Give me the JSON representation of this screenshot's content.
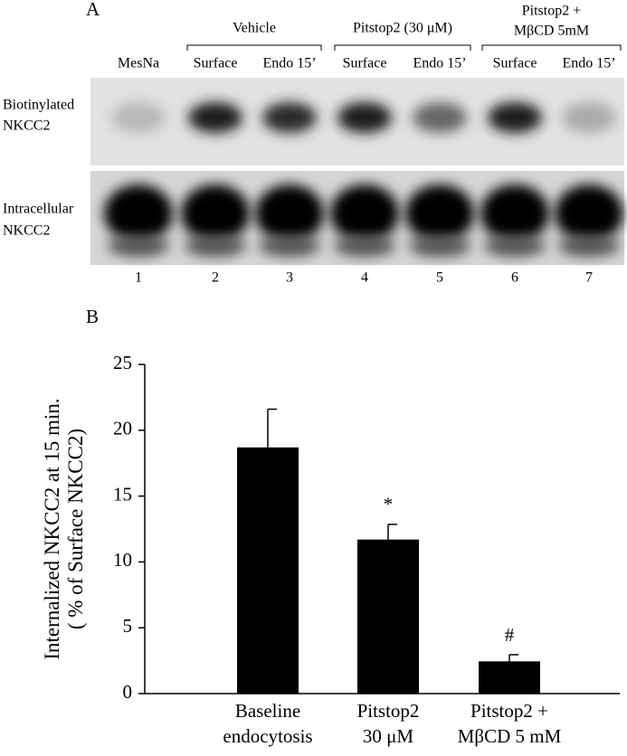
{
  "panel_a": {
    "label": "A",
    "groups": [
      [
        "Vehicle"
      ],
      [
        "Pitstop2 (30 μM)"
      ],
      [
        "Pitstop2 +",
        "MβCD 5mM"
      ]
    ],
    "lanes": [
      "MesNa",
      "Surface",
      "Endo 15’",
      "Surface",
      "Endo 15’",
      "Surface",
      "Endo 15’"
    ],
    "lane_numbers": [
      1,
      2,
      3,
      4,
      5,
      6,
      7
    ],
    "rows": [
      [
        "Biotinylated",
        "NKCC2"
      ],
      [
        "Intracellular",
        "NKCC2"
      ]
    ]
  },
  "chart_data": {
    "type": "bar",
    "panel_label": "B",
    "y_label": [
      "Internalized NKCC2 at 15 min.",
      "( % of Surface NKCC2)"
    ],
    "categories": [
      [
        "Baseline",
        "endocytosis"
      ],
      [
        "Pitstop2",
        "30 μM"
      ],
      [
        "Pitstop2 +",
        "MβCD 5 mM"
      ]
    ],
    "values": [
      18.7,
      11.7,
      2.45
    ],
    "errors": [
      2.9,
      1.15,
      0.5
    ],
    "annotations": [
      null,
      "*",
      "#"
    ],
    "color": "#000000",
    "ylim": [
      0,
      25
    ],
    "yticks": [
      0,
      5,
      10,
      15,
      20,
      25
    ],
    "grid": false
  }
}
